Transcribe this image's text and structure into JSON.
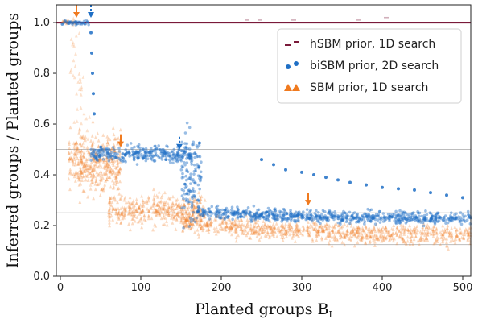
{
  "chart_data": {
    "type": "scatter",
    "xlabel": "Planted groups B",
    "xlabel_sub": "I",
    "ylabel": "Inferred groups / Planted groups",
    "xlim": [
      -5,
      510
    ],
    "ylim": [
      0,
      1.07
    ],
    "x_ticks": [
      0,
      100,
      200,
      300,
      400,
      500
    ],
    "x_tick_labels": [
      "0",
      "100",
      "200",
      "300",
      "400",
      "500"
    ],
    "y_ticks": [
      0.0,
      0.2,
      0.4,
      0.6,
      0.8,
      1.0
    ],
    "y_tick_labels": [
      "0.0",
      "0.2",
      "0.4",
      "0.6",
      "0.8",
      "1.0"
    ],
    "reference_lines": [
      1.0,
      0.5,
      0.25,
      0.125
    ],
    "legend_position": "top-right",
    "series": [
      {
        "name": "hSBM prior, 1D search",
        "marker": "dash",
        "color": "#7a1a3a",
        "points": [
          [
            0,
            1.0
          ],
          [
            100,
            1.0
          ],
          [
            200,
            1.0
          ],
          [
            300,
            1.0
          ],
          [
            400,
            1.0
          ],
          [
            510,
            1.0
          ]
        ],
        "outliers": [
          [
            232,
            1.01
          ],
          [
            248,
            1.01
          ],
          [
            290,
            1.01
          ],
          [
            330,
            1.0
          ],
          [
            370,
            1.01
          ],
          [
            405,
            1.02
          ]
        ]
      },
      {
        "name": "biSBM prior, 2D search",
        "marker": "circle",
        "color": "#1f6fc5",
        "segments": [
          {
            "x_range": [
              2,
              36
            ],
            "y": 1.0,
            "spread": 0.004
          },
          {
            "x_range": [
              38,
              168
            ],
            "y": 0.48,
            "spread": 0.015
          },
          {
            "x_range": [
              150,
              175
            ],
            "y": 0.4,
            "spread": 0.09
          },
          {
            "x_range": [
              170,
              510
            ],
            "y": 0.23,
            "spread": 0.012
          }
        ],
        "sparse_points": [
          [
            250,
            0.46
          ],
          [
            265,
            0.44
          ],
          [
            280,
            0.42
          ],
          [
            300,
            0.41
          ],
          [
            315,
            0.4
          ],
          [
            330,
            0.39
          ],
          [
            345,
            0.38
          ],
          [
            360,
            0.37
          ],
          [
            380,
            0.36
          ],
          [
            400,
            0.35
          ],
          [
            420,
            0.345
          ],
          [
            440,
            0.34
          ],
          [
            460,
            0.33
          ],
          [
            480,
            0.32
          ],
          [
            500,
            0.31
          ],
          [
            38,
            0.96
          ],
          [
            39,
            0.88
          ],
          [
            40,
            0.8
          ],
          [
            41,
            0.72
          ],
          [
            42,
            0.64
          ]
        ]
      },
      {
        "name": "SBM prior, 1D search",
        "marker": "triangle",
        "color": "#f07a1f",
        "segments": [
          {
            "x_range": [
              2,
              20
            ],
            "y": 1.0,
            "spread": 0.004
          },
          {
            "x_range": [
              10,
              75
            ],
            "y": 0.45,
            "spread": 0.06
          },
          {
            "x_range": [
              60,
              180
            ],
            "y": 0.26,
            "spread": 0.03
          },
          {
            "x_range": [
              150,
              510
            ],
            "y": 0.16,
            "spread": 0.02
          }
        ],
        "transition_points": [
          [
            18,
            0.95
          ],
          [
            20,
            0.88
          ],
          [
            22,
            0.8
          ],
          [
            24,
            0.72
          ],
          [
            26,
            0.65
          ],
          [
            28,
            0.58
          ],
          [
            30,
            0.52
          ],
          [
            32,
            0.48
          ]
        ]
      }
    ],
    "annotations": [
      {
        "type": "arrow",
        "x": 20,
        "y": 1.07,
        "color": "#f07a1f",
        "style": "solid"
      },
      {
        "type": "arrow",
        "x": 38,
        "y": 1.07,
        "color": "#1f6fc5",
        "style": "dashed"
      },
      {
        "type": "arrow",
        "x": 75,
        "y": 0.56,
        "color": "#f07a1f",
        "style": "solid"
      },
      {
        "type": "arrow",
        "x": 148,
        "y": 0.55,
        "color": "#1f6fc5",
        "style": "dashed"
      },
      {
        "type": "arrow",
        "x": 308,
        "y": 0.33,
        "color": "#f07a1f",
        "style": "solid"
      }
    ]
  }
}
